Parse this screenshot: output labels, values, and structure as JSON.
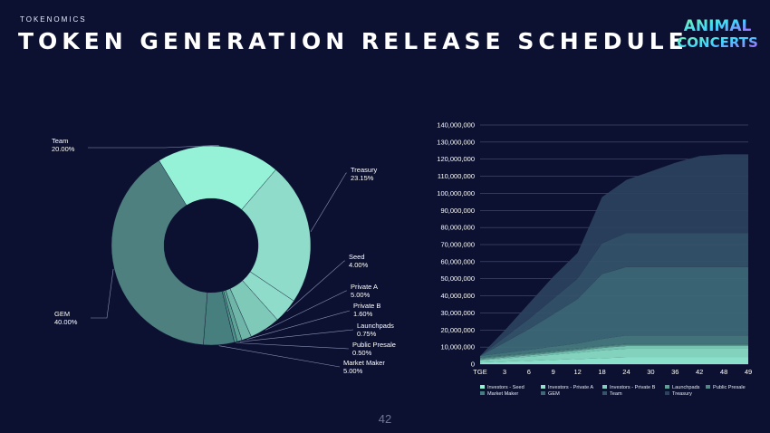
{
  "header": {
    "eyebrow": "TOKENOMICS",
    "title": "TOKEN GENERATION RELEASE SCHEDULE",
    "logo_line1": "ANIMAL",
    "logo_line2": "CONCERTS"
  },
  "page_number": "42",
  "colors": {
    "background": "#0c1131",
    "mint": "#96f2d7",
    "teal": "#4e8a8a",
    "slate": "#3e6e78"
  },
  "chart_data": [
    {
      "type": "pie",
      "variant": "donut",
      "slices": [
        {
          "name": "Team",
          "value": 20.0,
          "label": "20.00%",
          "color": "#96f2d7"
        },
        {
          "name": "Treasury",
          "value": 23.15,
          "label": "23.15%",
          "color": "#8fdcca"
        },
        {
          "name": "Seed",
          "value": 4.0,
          "label": "4.00%",
          "color": "#8fdcca"
        },
        {
          "name": "Private A",
          "value": 5.0,
          "label": "5.00%",
          "color": "#7fc9b9"
        },
        {
          "name": "Private B",
          "value": 1.6,
          "label": "1.60%",
          "color": "#6fb6a8"
        },
        {
          "name": "Launchpads",
          "value": 0.75,
          "label": "0.75%",
          "color": "#5ea497"
        },
        {
          "name": "Public Presale",
          "value": 0.5,
          "label": "0.50%",
          "color": "#4f9189"
        },
        {
          "name": "Market Maker",
          "value": 5.0,
          "label": "5.00%",
          "color": "#477f7f"
        },
        {
          "name": "GEM",
          "value": 40.0,
          "label": "40.00%",
          "color": "#4e8080"
        }
      ]
    },
    {
      "type": "area",
      "stacked": true,
      "x": [
        "TGE",
        "3",
        "6",
        "9",
        "12",
        "18",
        "24",
        "30",
        "36",
        "42",
        "48",
        "49"
      ],
      "ylim": [
        0,
        140000000
      ],
      "yticks": [
        "0",
        "10,000,000",
        "20,000,000",
        "30,000,000",
        "40,000,000",
        "50,000,000",
        "60,000,000",
        "70,000,000",
        "80,000,000",
        "90,000,000",
        "100,000,000",
        "110,000,000",
        "120,000,000",
        "130,000,000",
        "140,000,000"
      ],
      "grid": true,
      "legend_position": "bottom",
      "series": [
        {
          "name": "Investors - Seed",
          "color": "#96f2d7",
          "values": [
            1000000,
            1500000,
            2000000,
            2500000,
            3000000,
            3500000,
            4000000,
            4000000,
            4000000,
            4000000,
            4000000,
            4000000
          ]
        },
        {
          "name": "Investors - Private A",
          "color": "#8ee3c9",
          "values": [
            1200000,
            1800000,
            2400000,
            3000000,
            3700000,
            4500000,
            5000000,
            5000000,
            5000000,
            5000000,
            5000000,
            5000000
          ]
        },
        {
          "name": "Investors - Private B",
          "color": "#7fd0bb",
          "values": [
            400000,
            600000,
            800000,
            1000000,
            1200000,
            1500000,
            1600000,
            1600000,
            1600000,
            1600000,
            1600000,
            1600000
          ]
        },
        {
          "name": "Launchpads",
          "color": "#5f9e92",
          "values": [
            750000,
            750000,
            750000,
            750000,
            750000,
            750000,
            750000,
            750000,
            750000,
            750000,
            750000,
            750000
          ]
        },
        {
          "name": "Public Presale",
          "color": "#4f8b84",
          "values": [
            500000,
            500000,
            500000,
            500000,
            500000,
            500000,
            500000,
            500000,
            500000,
            500000,
            500000,
            500000
          ]
        },
        {
          "name": "Market Maker",
          "color": "#487c80",
          "values": [
            1000000,
            1500000,
            2000000,
            2500000,
            3000000,
            4000000,
            5000000,
            5000000,
            5000000,
            5000000,
            5000000,
            5000000
          ]
        },
        {
          "name": "GEM",
          "color": "#3e6a77",
          "values": [
            0,
            6000000,
            12000000,
            19000000,
            26000000,
            38000000,
            40000000,
            40000000,
            40000000,
            40000000,
            40000000,
            40000000
          ]
        },
        {
          "name": "Team",
          "color": "#34546a",
          "values": [
            0,
            3000000,
            6000000,
            9000000,
            12000000,
            18000000,
            20000000,
            20000000,
            20000000,
            20000000,
            20000000,
            20000000
          ]
        },
        {
          "name": "Treasury",
          "color": "#2d425e",
          "values": [
            0,
            4000000,
            9000000,
            13000000,
            15000000,
            27000000,
            31000000,
            36000000,
            41000000,
            45000000,
            46000000,
            46000000
          ]
        }
      ]
    }
  ]
}
